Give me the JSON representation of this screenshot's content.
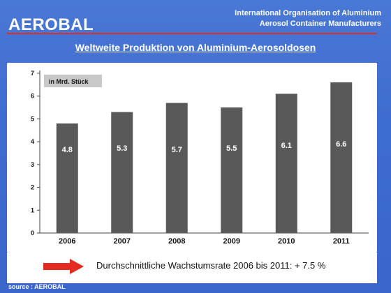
{
  "header": {
    "brand": "AEROBAL",
    "org_line1": "International Organisation of Aluminium",
    "org_line2": "Aerosol Container Manufacturers"
  },
  "colors": {
    "background": "#3f6cd0",
    "accent_line": "#d8312b",
    "bar": "#595959",
    "arrow": "#e32b22"
  },
  "chart_data": {
    "type": "bar",
    "title": "Weltweite Produktion von Aluminium-Aerosoldosen",
    "unit_label": "in Mrd. Stück",
    "categories": [
      "2006",
      "2007",
      "2008",
      "2009",
      "2010",
      "2011"
    ],
    "values": [
      4.8,
      5.3,
      5.7,
      5.5,
      6.1,
      6.6
    ],
    "data_labels": [
      "4.8",
      "5.3",
      "5.7",
      "5.5",
      "6.1",
      "6.6"
    ],
    "yticks": [
      "0",
      "1",
      "2",
      "3",
      "4",
      "5",
      "6",
      "7"
    ],
    "ylim": [
      0,
      7
    ],
    "grid": false,
    "legend": "none"
  },
  "footer": {
    "growth_note": "Durchschnittliche Wachstumsrate 2006 bis 2011: + 7.5 %",
    "source": "source : AEROBAL"
  }
}
